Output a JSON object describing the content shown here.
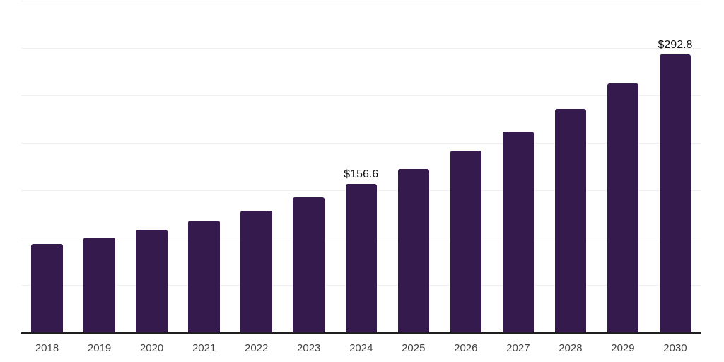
{
  "chart_data": {
    "type": "bar",
    "title": "",
    "xlabel": "",
    "ylabel": "",
    "categories": [
      "2018",
      "2019",
      "2020",
      "2021",
      "2022",
      "2023",
      "2024",
      "2025",
      "2026",
      "2027",
      "2028",
      "2029",
      "2030"
    ],
    "values": [
      93.4,
      100.0,
      108.1,
      118.1,
      128.5,
      142.5,
      156.6,
      172.6,
      191.9,
      212.0,
      235.6,
      262.2,
      292.8
    ],
    "data_labels": {
      "2024": "$156.6",
      "2030": "$292.8"
    },
    "ylim": [
      0,
      350
    ],
    "gridline_step": 50,
    "grid": true,
    "legend": false,
    "y_tick_labels_visible": false,
    "colors": {
      "bar": "#351a4e",
      "axis_line": "#1f1f1f",
      "gridline": "#f0f0f0",
      "tick_label": "#444444",
      "data_label": "#111111",
      "background": "#ffffff"
    }
  }
}
